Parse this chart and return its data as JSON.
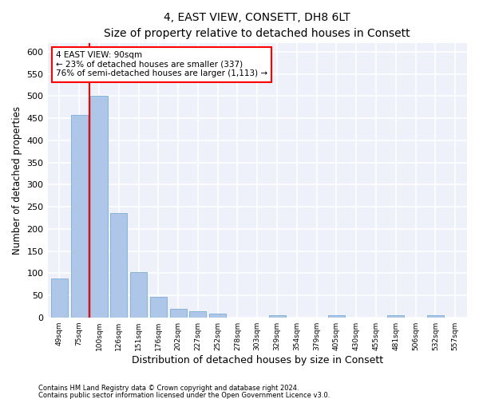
{
  "title": "4, EAST VIEW, CONSETT, DH8 6LT",
  "subtitle": "Size of property relative to detached houses in Consett",
  "xlabel": "Distribution of detached houses by size in Consett",
  "ylabel": "Number of detached properties",
  "categories": [
    "49sqm",
    "75sqm",
    "100sqm",
    "126sqm",
    "151sqm",
    "176sqm",
    "202sqm",
    "227sqm",
    "252sqm",
    "278sqm",
    "303sqm",
    "329sqm",
    "354sqm",
    "379sqm",
    "405sqm",
    "430sqm",
    "455sqm",
    "481sqm",
    "506sqm",
    "532sqm",
    "557sqm"
  ],
  "values": [
    88,
    458,
    500,
    235,
    103,
    47,
    20,
    14,
    8,
    0,
    0,
    5,
    0,
    0,
    4,
    0,
    0,
    4,
    0,
    4,
    0
  ],
  "bar_color": "#aec6e8",
  "bar_edge_color": "#7aadd4",
  "vline_x": 1.5,
  "vline_color": "red",
  "annotation_text": "4 EAST VIEW: 90sqm\n← 23% of detached houses are smaller (337)\n76% of semi-detached houses are larger (1,113) →",
  "annotation_box_color": "white",
  "annotation_box_edge_color": "red",
  "ylim": [
    0,
    620
  ],
  "yticks": [
    0,
    50,
    100,
    150,
    200,
    250,
    300,
    350,
    400,
    450,
    500,
    550,
    600
  ],
  "background_color": "#eef1fa",
  "grid_color": "white",
  "footnote1": "Contains HM Land Registry data © Crown copyright and database right 2024.",
  "footnote2": "Contains public sector information licensed under the Open Government Licence v3.0.",
  "title_fontsize": 10,
  "xlabel_fontsize": 9,
  "ylabel_fontsize": 8.5
}
